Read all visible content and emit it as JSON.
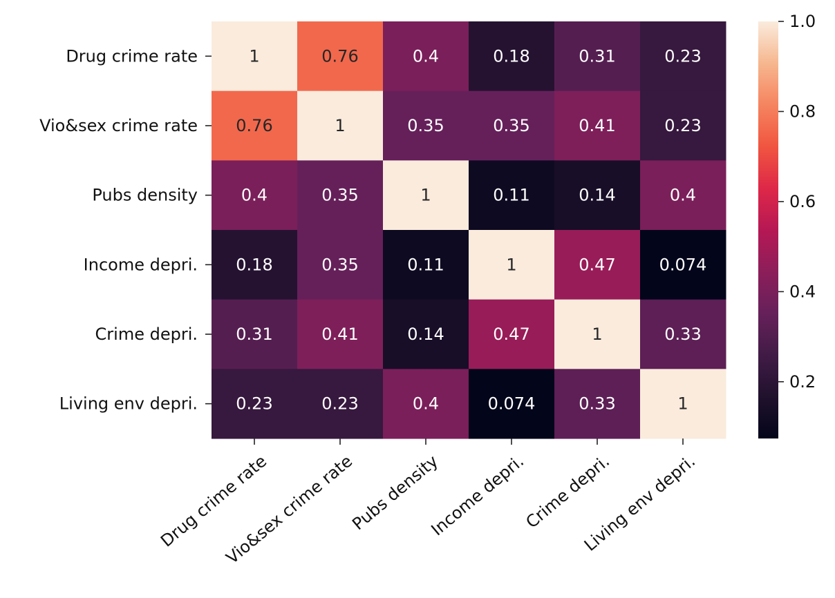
{
  "chart_data": {
    "type": "heatmap",
    "title": "",
    "xlabel": "",
    "ylabel": "",
    "categories": [
      "Drug crime rate",
      "Vio&sex crime rate",
      "Pubs density",
      "Income depri.",
      "Crime depri.",
      "Living env depri."
    ],
    "x_categories": [
      "Drug crime rate",
      "Vio&sex crime rate",
      "Pubs density",
      "Income depri.",
      "Crime depri.",
      "Living env depri."
    ],
    "y_categories": [
      "Drug crime rate",
      "Vio&sex crime rate",
      "Pubs density",
      "Income depri.",
      "Crime depri.",
      "Living env depri."
    ],
    "values": [
      [
        1,
        0.76,
        0.4,
        0.18,
        0.31,
        0.23
      ],
      [
        0.76,
        1,
        0.35,
        0.35,
        0.41,
        0.23
      ],
      [
        0.4,
        0.35,
        1,
        0.11,
        0.14,
        0.4
      ],
      [
        0.18,
        0.35,
        0.11,
        1,
        0.47,
        0.074
      ],
      [
        0.31,
        0.41,
        0.14,
        0.47,
        1,
        0.33
      ],
      [
        0.23,
        0.23,
        0.4,
        0.074,
        0.33,
        1
      ]
    ],
    "annotations": true,
    "colormap": "rocket",
    "colorbar": {
      "range": [
        0.074,
        1.0
      ],
      "ticks": [
        0.2,
        0.4,
        0.6,
        0.8,
        1.0
      ],
      "tick_labels": [
        "0.2",
        "0.4",
        "0.6",
        "0.8",
        "1.0"
      ]
    },
    "x_tick_rotation": 40
  }
}
